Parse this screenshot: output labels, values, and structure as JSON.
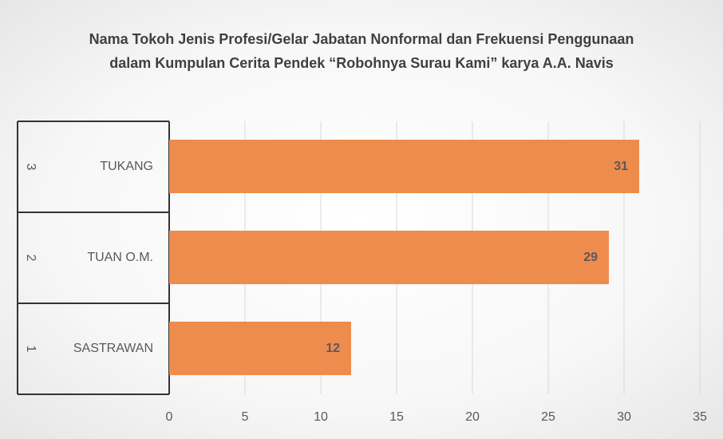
{
  "chart_data": {
    "type": "bar",
    "title": "Nama Tokoh Jenis Profesi/Gelar Jabatan Nonformal dan Frekuensi Penggunaan dalam Kumpulan Cerita Pendek “Robohnya Surau Kami” karya A.A. Navis",
    "groups": [
      "1",
      "2",
      "3"
    ],
    "categories": [
      "SASTRAWAN",
      "TUAN O.M.",
      "TUKANG"
    ],
    "values": [
      12,
      29,
      31
    ],
    "color": "#ee8c4e",
    "xlim": [
      0,
      35
    ],
    "xticks": [
      0,
      5,
      10,
      15,
      20,
      25,
      30,
      35
    ],
    "grid": true
  }
}
